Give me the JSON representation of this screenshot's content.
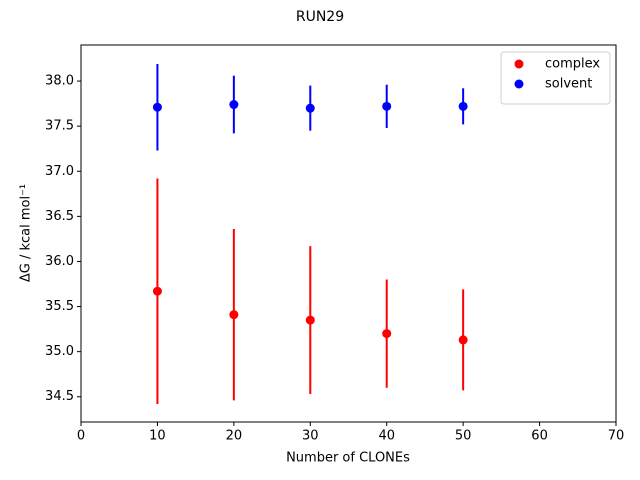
{
  "chart_data": {
    "type": "errorbar",
    "title": "RUN29",
    "xlabel": "Number of CLONEs",
    "ylabel": "ΔG / kcal mol⁻¹",
    "xlim": [
      0,
      70
    ],
    "ylim": [
      34.22,
      38.4
    ],
    "xticks": [
      0,
      10,
      20,
      30,
      40,
      50,
      60,
      70
    ],
    "yticks": [
      34.5,
      {
        "value": 35,
        "label": "35.0"
      },
      35.5,
      {
        "value": 36,
        "label": "36.0"
      },
      36.5,
      {
        "value": 37,
        "label": "37.0"
      },
      37.5,
      {
        "value": 38,
        "label": "38.0"
      }
    ],
    "legend": "upper right",
    "series": [
      {
        "name": "complex",
        "color": "#ff0000",
        "x": [
          10,
          20,
          30,
          40,
          50
        ],
        "values": [
          35.67,
          35.41,
          35.35,
          35.2,
          35.13
        ],
        "errors": [
          1.25,
          0.95,
          0.82,
          0.6,
          0.56
        ]
      },
      {
        "name": "solvent",
        "color": "#0000ff",
        "x": [
          10,
          20,
          30,
          40,
          50
        ],
        "values": [
          37.71,
          37.74,
          37.7,
          37.72,
          37.72
        ],
        "errors": [
          0.48,
          0.32,
          0.25,
          0.24,
          0.2
        ]
      }
    ]
  }
}
